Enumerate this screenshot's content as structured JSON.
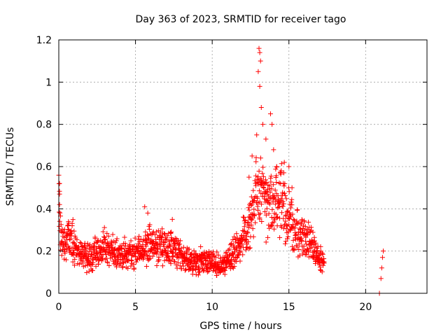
{
  "chart_data": {
    "type": "scatter",
    "title": "Day 363 of 2023, SRMTID for receiver tago",
    "xlabel": "GPS time / hours",
    "ylabel": "SRMTID / TECUs",
    "xlim": [
      0,
      24
    ],
    "ylim": [
      0,
      1.2
    ],
    "grid": true,
    "marker": "+",
    "x_ticks": [
      0,
      5,
      10,
      15,
      20
    ],
    "x_tick_labels": [
      "0",
      "5",
      "10",
      "15",
      "20"
    ],
    "y_ticks": [
      0,
      0.2,
      0.4,
      0.6,
      0.8,
      1.0,
      1.2
    ],
    "y_tick_labels": [
      "0",
      "0.2",
      "0.4",
      "0.6",
      "0.8",
      "1",
      "1.2"
    ],
    "series": [
      {
        "name": "tago",
        "color": "#ff0000",
        "profile": [
          [
            0.0,
            0.46
          ],
          [
            0.1,
            0.3
          ],
          [
            0.3,
            0.22
          ],
          [
            0.6,
            0.27
          ],
          [
            1.0,
            0.24
          ],
          [
            1.5,
            0.17
          ],
          [
            2.0,
            0.17
          ],
          [
            2.5,
            0.2
          ],
          [
            3.0,
            0.22
          ],
          [
            3.5,
            0.2
          ],
          [
            4.0,
            0.19
          ],
          [
            4.5,
            0.18
          ],
          [
            5.0,
            0.19
          ],
          [
            5.5,
            0.2
          ],
          [
            6.0,
            0.24
          ],
          [
            6.5,
            0.22
          ],
          [
            7.0,
            0.21
          ],
          [
            7.5,
            0.2
          ],
          [
            8.0,
            0.18
          ],
          [
            8.5,
            0.15
          ],
          [
            9.0,
            0.15
          ],
          [
            9.5,
            0.16
          ],
          [
            10.0,
            0.15
          ],
          [
            10.5,
            0.13
          ],
          [
            11.0,
            0.15
          ],
          [
            11.5,
            0.2
          ],
          [
            12.0,
            0.25
          ],
          [
            12.5,
            0.35
          ],
          [
            13.0,
            0.5
          ],
          [
            13.5,
            0.42
          ],
          [
            14.0,
            0.42
          ],
          [
            14.5,
            0.46
          ],
          [
            15.0,
            0.35
          ],
          [
            15.5,
            0.28
          ],
          [
            16.0,
            0.28
          ],
          [
            16.5,
            0.22
          ],
          [
            17.0,
            0.16
          ],
          [
            17.3,
            0.15
          ]
        ],
        "peaks": [
          [
            0.05,
            0.52
          ],
          [
            0.05,
            0.47
          ],
          [
            0.05,
            0.42
          ],
          [
            5.6,
            0.41
          ],
          [
            5.8,
            0.38
          ],
          [
            7.4,
            0.35
          ],
          [
            12.4,
            0.55
          ],
          [
            12.6,
            0.65
          ],
          [
            12.9,
            0.75
          ],
          [
            13.05,
            1.16
          ],
          [
            13.1,
            1.14
          ],
          [
            13.15,
            1.1
          ],
          [
            13.0,
            1.05
          ],
          [
            13.1,
            0.98
          ],
          [
            13.2,
            0.88
          ],
          [
            13.3,
            0.8
          ],
          [
            13.5,
            0.73
          ],
          [
            13.8,
            0.85
          ],
          [
            13.9,
            0.8
          ],
          [
            14.0,
            0.68
          ],
          [
            14.2,
            0.6
          ],
          [
            14.5,
            0.58
          ],
          [
            14.7,
            0.62
          ],
          [
            15.0,
            0.6
          ],
          [
            15.2,
            0.5
          ]
        ],
        "isolated": [
          [
            20.9,
            0.0
          ],
          [
            21.0,
            0.07
          ],
          [
            21.05,
            0.12
          ],
          [
            21.1,
            0.17
          ],
          [
            21.15,
            0.2
          ]
        ]
      }
    ]
  }
}
